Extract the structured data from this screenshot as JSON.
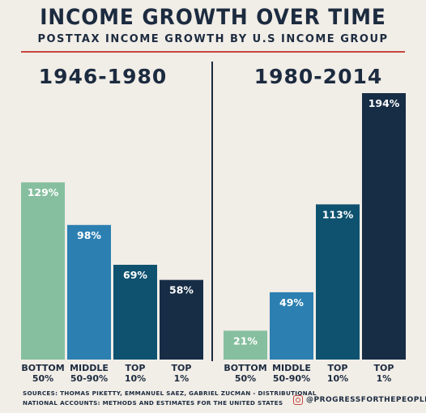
{
  "header": {
    "title": "INCOME GROWTH OVER TIME",
    "subtitle": "POSTTAX INCOME GROWTH BY U.S INCOME GROUP"
  },
  "chart_data": [
    {
      "type": "bar",
      "title": "1946-1980",
      "categories": [
        [
          "BOTTOM",
          "50%"
        ],
        [
          "MIDDLE",
          "50-90%"
        ],
        [
          "TOP",
          "10%"
        ],
        [
          "TOP",
          "1%"
        ]
      ],
      "values": [
        129,
        98,
        69,
        58
      ],
      "labels": [
        "129%",
        "98%",
        "69%",
        "58%"
      ],
      "colors": [
        "#86bf9f",
        "#2c7fb1",
        "#0e5270",
        "#172d46"
      ],
      "ylim": [
        0,
        200
      ]
    },
    {
      "type": "bar",
      "title": "1980-2014",
      "categories": [
        [
          "BOTTOM",
          "50%"
        ],
        [
          "MIDDLE",
          "50-90%"
        ],
        [
          "TOP",
          "10%"
        ],
        [
          "TOP",
          "1%"
        ]
      ],
      "values": [
        21,
        49,
        113,
        194
      ],
      "labels": [
        "21%",
        "49%",
        "113%",
        "194%"
      ],
      "colors": [
        "#86bf9f",
        "#2c7fb1",
        "#0e5270",
        "#172d46"
      ],
      "ylim": [
        0,
        200
      ]
    }
  ],
  "footer": {
    "sources_line1": "SOURCES: THOMAS PIKETTY, EMMANUEL SAEZ, GABRIEL ZUCMAN - DISTRIBUTIONAL",
    "sources_line2": "NATIONAL ACCOUNTS: METHODS AND ESTIMATES FOR THE UNITED STATES",
    "social_handle": "@PROGRESSFORTHEPEOPLE",
    "social_icon": "instagram-icon"
  },
  "colors": {
    "background": "#f1ede7",
    "navy": "#1c2b3f",
    "accent_red": "#c8453f"
  }
}
